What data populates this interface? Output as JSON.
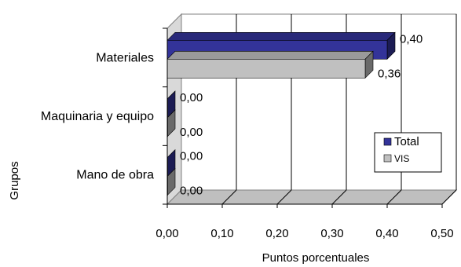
{
  "chart_data": {
    "type": "bar",
    "orientation": "horizontal",
    "style": "3d",
    "categories": [
      "Materiales",
      "Maquinaria y equipo",
      "Mano de obra"
    ],
    "series": [
      {
        "name": "Total",
        "values": [
          0.4,
          0.0,
          0.0
        ],
        "color": "#333399",
        "labels": [
          "0,40",
          "0,00",
          "0,00"
        ]
      },
      {
        "name": "VIS",
        "values": [
          0.36,
          0.0,
          0.0
        ],
        "color": "#c0c0c0",
        "labels": [
          "0,36",
          "0,00",
          "0,00"
        ]
      }
    ],
    "xlim": [
      0,
      0.5
    ],
    "xticks": [
      "0,00",
      "0,10",
      "0,20",
      "0,30",
      "0,40",
      "0,50"
    ],
    "xlabel": "Puntos porcentuales",
    "ylabel": "Grupos",
    "grid": "vertical",
    "legend": "right"
  }
}
